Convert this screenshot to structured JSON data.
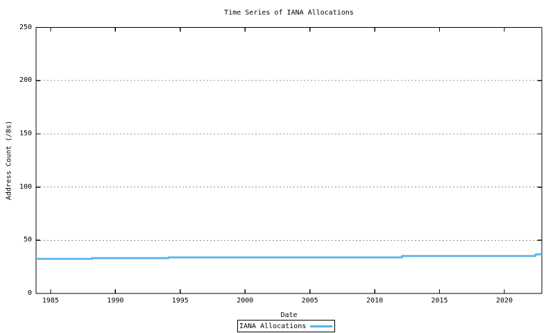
{
  "chart_data": {
    "type": "line",
    "title": "Time Series of IANA Allocations",
    "xlabel": "Date",
    "ylabel": "Address Count (/8s)",
    "xlim": [
      1983.88,
      2022.89
    ],
    "ylim": [
      0,
      250
    ],
    "xticks": [
      1985,
      1990,
      1995,
      2000,
      2005,
      2010,
      2015,
      2020
    ],
    "yticks": [
      0,
      50,
      100,
      150,
      200,
      250
    ],
    "grid": {
      "horizontal": true,
      "vertical": false,
      "style": "dotted"
    },
    "legend": {
      "position": "bottom-center-outside",
      "boxed": true,
      "entries": [
        {
          "label": "IANA Allocations",
          "sample": "line"
        }
      ]
    },
    "series": [
      {
        "name": "IANA Allocations",
        "points": [
          [
            1983.88,
            32.5
          ],
          [
            1988.2,
            32.5
          ],
          [
            1988.2,
            33.2
          ],
          [
            1994.1,
            33.2
          ],
          [
            1994.1,
            33.9
          ],
          [
            2012.1,
            33.9
          ],
          [
            2012.1,
            35.2
          ],
          [
            2022.4,
            35.2
          ],
          [
            2022.4,
            36.7
          ],
          [
            2022.89,
            36.7
          ]
        ]
      }
    ]
  },
  "colors": {
    "series": "#56b4e9",
    "grid": "#8c8c8c",
    "axis": "#000000",
    "text": "#000000",
    "background": "#ffffff"
  }
}
